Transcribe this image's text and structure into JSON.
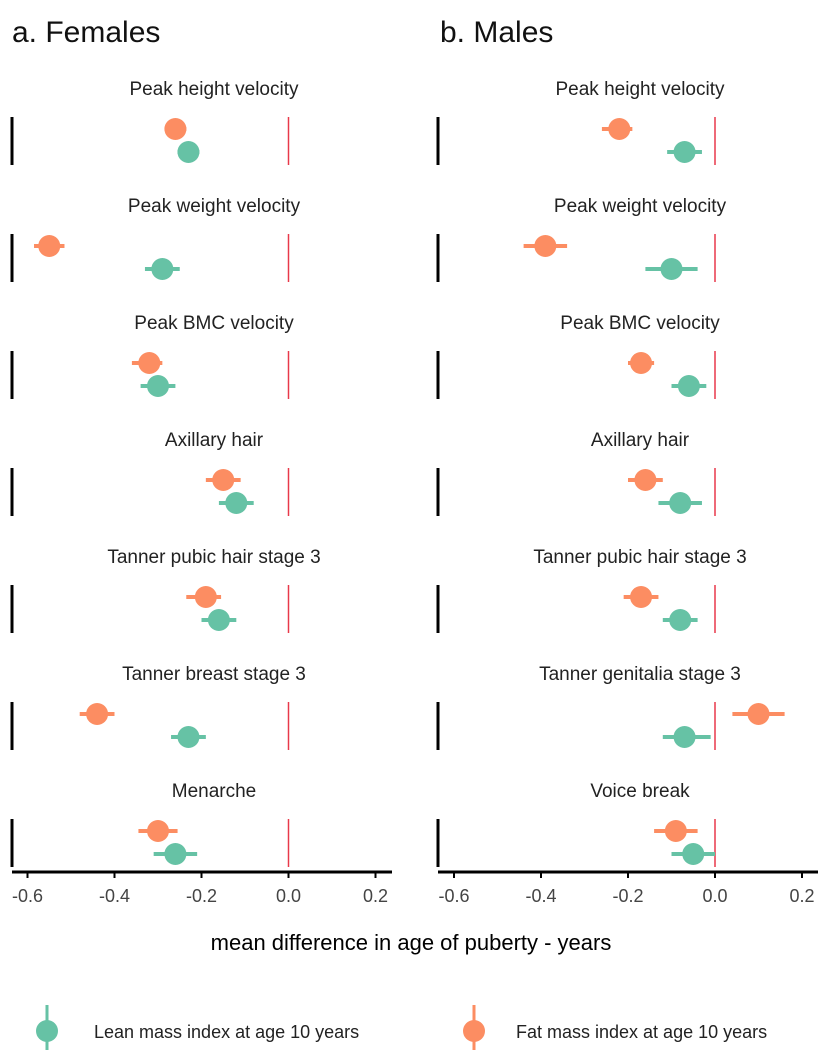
{
  "figure": {
    "x_axis_title": "mean difference in age of puberty - years"
  },
  "legend": {
    "items": [
      {
        "label": "Lean mass index at age 10 years",
        "color": "#66c2a5"
      },
      {
        "label": "Fat mass index at age 10 years",
        "color": "#fc8d62"
      }
    ]
  },
  "chart_data": [
    {
      "type": "forest",
      "title": "a. Females",
      "xlabel": "mean difference in age of puberty - years",
      "xlim": [
        -0.65,
        0.23
      ],
      "xticks": [
        -0.6,
        -0.4,
        -0.2,
        0.0,
        0.2
      ],
      "xtick_labels": [
        "-0.6",
        "-0.4",
        "-0.2",
        "0.0",
        "0.2"
      ],
      "reference_line": 0.0,
      "panels": [
        {
          "label": "Peak height velocity",
          "lean": {
            "est": -0.23,
            "lo": -0.255,
            "hi": -0.205
          },
          "fat": {
            "est": -0.26,
            "lo": -0.285,
            "hi": -0.235
          }
        },
        {
          "label": "Peak weight velocity",
          "lean": {
            "est": -0.29,
            "lo": -0.33,
            "hi": -0.25
          },
          "fat": {
            "est": -0.55,
            "lo": -0.585,
            "hi": -0.515
          }
        },
        {
          "label": "Peak BMC velocity",
          "lean": {
            "est": -0.3,
            "lo": -0.34,
            "hi": -0.26
          },
          "fat": {
            "est": -0.32,
            "lo": -0.36,
            "hi": -0.29
          }
        },
        {
          "label": "Axillary hair",
          "lean": {
            "est": -0.12,
            "lo": -0.16,
            "hi": -0.08
          },
          "fat": {
            "est": -0.15,
            "lo": -0.19,
            "hi": -0.11
          }
        },
        {
          "label": "Tanner pubic hair stage 3",
          "lean": {
            "est": -0.16,
            "lo": -0.2,
            "hi": -0.12
          },
          "fat": {
            "est": -0.19,
            "lo": -0.235,
            "hi": -0.155
          }
        },
        {
          "label": "Tanner breast stage 3",
          "lean": {
            "est": -0.23,
            "lo": -0.27,
            "hi": -0.19
          },
          "fat": {
            "est": -0.44,
            "lo": -0.48,
            "hi": -0.4
          }
        },
        {
          "label": "Menarche",
          "lean": {
            "est": -0.26,
            "lo": -0.31,
            "hi": -0.21
          },
          "fat": {
            "est": -0.3,
            "lo": -0.345,
            "hi": -0.255
          }
        }
      ]
    },
    {
      "type": "forest",
      "title": "b. Males",
      "xlabel": "mean difference in age of puberty - years",
      "xlim": [
        -0.65,
        0.23
      ],
      "xticks": [
        -0.6,
        -0.4,
        -0.2,
        0.0,
        0.2
      ],
      "xtick_labels": [
        "-0.6",
        "-0.4",
        "-0.2",
        "0.0",
        "0.2"
      ],
      "reference_line": 0.0,
      "panels": [
        {
          "label": "Peak height velocity",
          "lean": {
            "est": -0.07,
            "lo": -0.11,
            "hi": -0.03
          },
          "fat": {
            "est": -0.22,
            "lo": -0.26,
            "hi": -0.19
          }
        },
        {
          "label": "Peak weight velocity",
          "lean": {
            "est": -0.1,
            "lo": -0.16,
            "hi": -0.04
          },
          "fat": {
            "est": -0.39,
            "lo": -0.44,
            "hi": -0.34
          }
        },
        {
          "label": "Peak BMC velocity",
          "lean": {
            "est": -0.06,
            "lo": -0.1,
            "hi": -0.02
          },
          "fat": {
            "est": -0.17,
            "lo": -0.2,
            "hi": -0.14
          }
        },
        {
          "label": "Axillary hair",
          "lean": {
            "est": -0.08,
            "lo": -0.13,
            "hi": -0.03
          },
          "fat": {
            "est": -0.16,
            "lo": -0.2,
            "hi": -0.12
          }
        },
        {
          "label": "Tanner pubic hair stage 3",
          "lean": {
            "est": -0.08,
            "lo": -0.12,
            "hi": -0.04
          },
          "fat": {
            "est": -0.17,
            "lo": -0.21,
            "hi": -0.13
          }
        },
        {
          "label": "Tanner genitalia stage 3",
          "lean": {
            "est": -0.07,
            "lo": -0.12,
            "hi": -0.01
          },
          "fat": {
            "est": 0.1,
            "lo": 0.04,
            "hi": 0.16
          }
        },
        {
          "label": "Voice break",
          "lean": {
            "est": -0.05,
            "lo": -0.1,
            "hi": 0.0
          },
          "fat": {
            "est": -0.09,
            "lo": -0.14,
            "hi": -0.04
          }
        }
      ]
    }
  ]
}
